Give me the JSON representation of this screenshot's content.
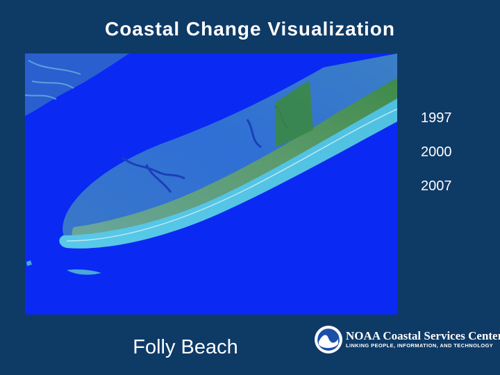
{
  "slide": {
    "title": "Coastal Change Visualization",
    "years": [
      "1997",
      "2000",
      "2007"
    ],
    "location_label": "Folly Beach"
  },
  "logo": {
    "name": "NOAA Coastal Services Center",
    "tagline": "LINKING PEOPLE, INFORMATION, AND TECHNOLOGY",
    "seal_text": "NOAA"
  },
  "colors": {
    "background": "#0e3a66",
    "water": "#0a29f2",
    "text": "#ffffff"
  }
}
